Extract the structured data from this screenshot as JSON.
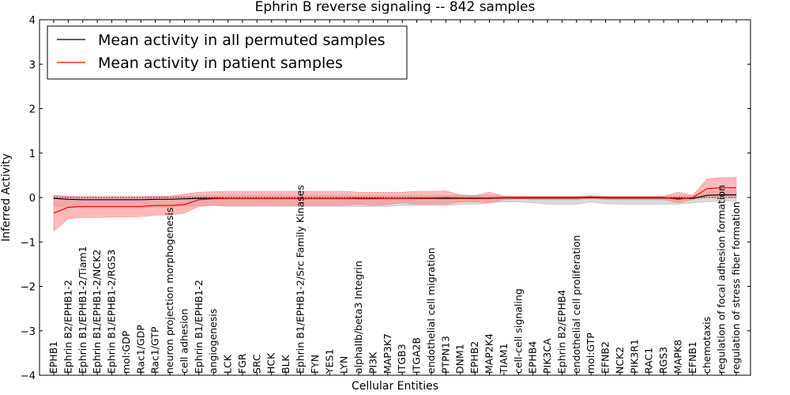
{
  "chart_data": {
    "type": "line",
    "title": "Ephrin B reverse signaling -- 842 samples",
    "xlabel": "Cellular Entities",
    "ylabel": "Inferred Activity",
    "ylim": [
      -4,
      4
    ],
    "yticks": [
      4,
      3,
      2,
      1,
      0,
      -1,
      -2,
      -3,
      -4
    ],
    "ytick_labels": [
      "4",
      "3",
      "2",
      "1",
      "0",
      "−1",
      "−2",
      "−3",
      "−4"
    ],
    "grid": false,
    "legend_position": "top-left",
    "categories": [
      "EPHB1",
      "Ephrin B2/EPHB1-2",
      "Ephrin B1/EPHB1-2/Tiam1",
      "Ephrin B1/EPHB1-2/NCK2",
      "Ephrin B1/EPHB1-2/RGS3",
      "mol:GDP",
      "Rac1/GDP",
      "Rac1/GTP",
      "neuron projection morphogenesis",
      "cell adhesion",
      "Ephrin B1/EPHB1-2",
      "angiogenesis",
      "LCK",
      "FGR",
      "SRC",
      "HCK",
      "BLK",
      "Ephrin B1/EPHB1-2/Src Family Kinases",
      "FYN",
      "YES1",
      "LYN",
      "alphaIIb/beta3 Integrin",
      "PI3K",
      "MAP3K7",
      "ITGB3",
      "ITGA2B",
      "endothelial cell migration",
      "PTPN13",
      "DNM1",
      "EPHB2",
      "MAP2K4",
      "TIAM1",
      "cell-cell signaling",
      "EPHB4",
      "PIK3CA",
      "Ephrin B2/EPHB4",
      "endothelial cell proliferation",
      "mol:GTP",
      "EFNB2",
      "NCK2",
      "PIK3R1",
      "RAC1",
      "RGS3",
      "MAPK8",
      "EFNB1",
      "chemotaxis",
      "regulation of focal adhesion formation",
      "regulation of stress fiber formation"
    ],
    "series": [
      {
        "name": "Mean activity in all permuted samples",
        "color": "#000000",
        "band_color": "#b0b0b0",
        "values": [
          -0.02,
          -0.04,
          -0.05,
          -0.05,
          -0.05,
          -0.05,
          -0.05,
          -0.04,
          -0.04,
          -0.03,
          -0.02,
          -0.02,
          -0.02,
          -0.02,
          -0.02,
          -0.02,
          -0.02,
          -0.02,
          -0.02,
          -0.02,
          -0.02,
          -0.02,
          -0.02,
          -0.02,
          -0.02,
          -0.02,
          -0.02,
          -0.02,
          -0.02,
          -0.02,
          -0.02,
          -0.01,
          -0.01,
          -0.01,
          -0.01,
          -0.01,
          -0.01,
          0,
          -0.01,
          -0.01,
          -0.01,
          -0.01,
          -0.01,
          -0.02,
          -0.02,
          0.05,
          0.06,
          0.06
        ],
        "lower": [
          -0.2,
          -0.22,
          -0.22,
          -0.22,
          -0.22,
          -0.22,
          -0.22,
          -0.22,
          -0.22,
          -0.2,
          -0.18,
          -0.18,
          -0.2,
          -0.2,
          -0.2,
          -0.2,
          -0.2,
          -0.2,
          -0.2,
          -0.2,
          -0.2,
          -0.2,
          -0.2,
          -0.2,
          -0.18,
          -0.18,
          -0.18,
          -0.18,
          -0.16,
          -0.15,
          -0.12,
          -0.1,
          -0.1,
          -0.12,
          -0.15,
          -0.15,
          -0.15,
          -0.1,
          -0.14,
          -0.15,
          -0.15,
          -0.15,
          -0.15,
          -0.15,
          -0.12,
          -0.1,
          -0.08,
          -0.08
        ],
        "upper": [
          0.05,
          0.03,
          0.02,
          0.02,
          0.02,
          0.02,
          0.02,
          0.02,
          0.02,
          0.03,
          0.04,
          0.04,
          0.04,
          0.04,
          0.04,
          0.04,
          0.04,
          0.04,
          0.04,
          0.04,
          0.04,
          0.04,
          0.04,
          0.04,
          0.04,
          0.04,
          0.04,
          0.04,
          0.05,
          0.05,
          0.04,
          0.03,
          0.03,
          0.03,
          0.03,
          0.03,
          0.03,
          0.03,
          0.03,
          0.03,
          0.03,
          0.03,
          0.03,
          0.03,
          0.05,
          0.12,
          0.15,
          0.15
        ]
      },
      {
        "name": "Mean activity in patient samples",
        "color": "#ff0000",
        "band_color": "#ff8080",
        "values": [
          -0.35,
          -0.22,
          -0.2,
          -0.2,
          -0.2,
          -0.2,
          -0.2,
          -0.18,
          -0.18,
          -0.16,
          -0.05,
          -0.03,
          -0.02,
          -0.02,
          -0.02,
          -0.02,
          -0.02,
          -0.02,
          -0.02,
          -0.02,
          -0.02,
          -0.03,
          -0.03,
          -0.02,
          -0.02,
          -0.01,
          -0.01,
          0,
          -0.01,
          -0.01,
          -0.01,
          0,
          0,
          0,
          0,
          0,
          0,
          0.01,
          0,
          0,
          0,
          0,
          0,
          -0.04,
          0,
          0.2,
          0.22,
          0.22
        ],
        "lower": [
          -0.75,
          -0.48,
          -0.45,
          -0.45,
          -0.44,
          -0.44,
          -0.43,
          -0.4,
          -0.4,
          -0.35,
          -0.2,
          -0.18,
          -0.18,
          -0.18,
          -0.18,
          -0.18,
          -0.18,
          -0.18,
          -0.18,
          -0.18,
          -0.18,
          -0.15,
          -0.18,
          -0.16,
          -0.12,
          -0.15,
          -0.15,
          -0.15,
          -0.1,
          -0.1,
          -0.12,
          -0.05,
          -0.03,
          -0.05,
          -0.05,
          -0.05,
          -0.05,
          -0.03,
          -0.05,
          -0.05,
          -0.05,
          -0.05,
          -0.05,
          -0.12,
          -0.05,
          0,
          0,
          0
        ],
        "upper": [
          0.05,
          0.02,
          0.02,
          0.02,
          0.02,
          0.02,
          0.02,
          0.03,
          0.03,
          0.08,
          0.12,
          0.13,
          0.14,
          0.14,
          0.14,
          0.14,
          0.14,
          0.14,
          0.14,
          0.14,
          0.14,
          0.12,
          0.12,
          0.12,
          0.12,
          0.14,
          0.14,
          0.15,
          0.06,
          0.04,
          0.12,
          0.03,
          0.03,
          0.03,
          0.03,
          0.03,
          0.03,
          0.04,
          0.03,
          0.03,
          0.03,
          0.03,
          0.03,
          0.12,
          0.05,
          0.42,
          0.45,
          0.45
        ]
      }
    ]
  }
}
